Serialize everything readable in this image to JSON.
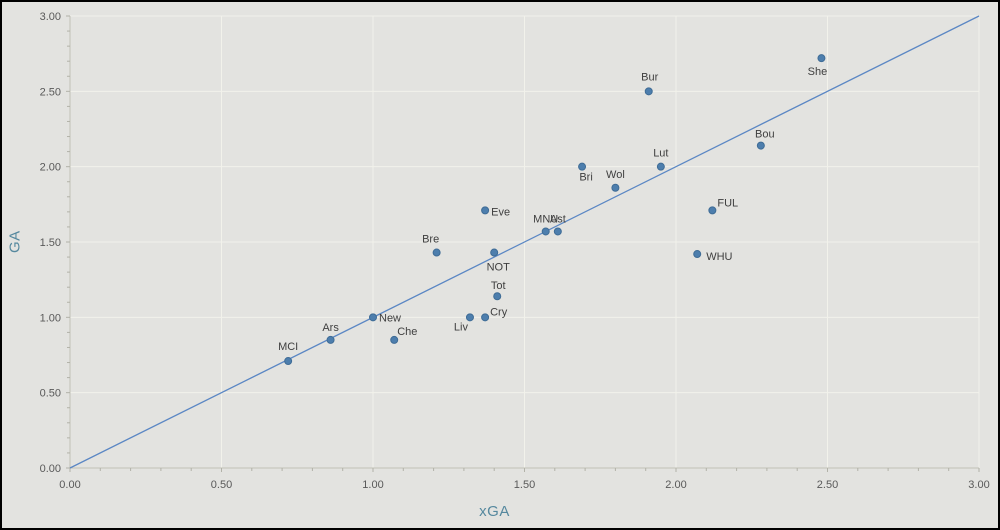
{
  "chart_theme": {
    "background": "#e3e3e0",
    "frame_border": "#000000",
    "gridline": "#f2f2eb",
    "axis_line": "#c0c0b6",
    "tick": "#b2b2a8",
    "tick_label_color": "#595959",
    "axis_title_color": "#55889e",
    "marker_fill": "#4d7ead",
    "marker_stroke": "#3f6c96",
    "reference_line_color": "#5b87c4",
    "point_label_color": "#3f3f3f"
  },
  "chart_data": {
    "type": "scatter",
    "title": "",
    "xlabel": "xGA",
    "ylabel": "GA",
    "xlim": [
      0,
      3
    ],
    "ylim": [
      0,
      3
    ],
    "x_major_step": 0.5,
    "x_minor_step": 0.1,
    "y_major_step": 0.5,
    "y_minor_step": 0.1,
    "x_tick_labels": [
      "0.00",
      "0.50",
      "1.00",
      "1.50",
      "2.00",
      "2.50",
      "3.00"
    ],
    "y_tick_labels": [
      "0.00",
      "0.50",
      "1.00",
      "1.50",
      "2.00",
      "2.50",
      "3.00"
    ],
    "grid": "major",
    "legend": "none",
    "reference_line": {
      "name": "identity",
      "from": [
        0,
        0
      ],
      "to": [
        3,
        3
      ]
    },
    "series": [
      {
        "name": "teams",
        "points": [
          {
            "label": "MCI",
            "x": 0.72,
            "y": 0.71,
            "dx": 0,
            "dy": -11,
            "anchor": "middle"
          },
          {
            "label": "Ars",
            "x": 0.86,
            "y": 0.85,
            "dx": 0,
            "dy": -9,
            "anchor": "middle"
          },
          {
            "label": "New",
            "x": 1.0,
            "y": 1.0,
            "dx": 6,
            "dy": 4,
            "anchor": "start"
          },
          {
            "label": "Che",
            "x": 1.07,
            "y": 0.85,
            "dx": 3,
            "dy": -5,
            "anchor": "start"
          },
          {
            "label": "Bre",
            "x": 1.21,
            "y": 1.43,
            "dx": -6,
            "dy": -10,
            "anchor": "middle"
          },
          {
            "label": "Liv",
            "x": 1.32,
            "y": 1.0,
            "dx": -2,
            "dy": 13,
            "anchor": "end"
          },
          {
            "label": "Eve",
            "x": 1.37,
            "y": 1.71,
            "dx": 6,
            "dy": 5,
            "anchor": "start"
          },
          {
            "label": "Cry",
            "x": 1.37,
            "y": 1.0,
            "dx": 5,
            "dy": -2,
            "anchor": "start"
          },
          {
            "label": "NOT",
            "x": 1.4,
            "y": 1.43,
            "dx": 4,
            "dy": 18,
            "anchor": "middle"
          },
          {
            "label": "Tot",
            "x": 1.41,
            "y": 1.14,
            "dx": 1,
            "dy": -7,
            "anchor": "middle"
          },
          {
            "label": "MNU",
            "x": 1.57,
            "y": 1.57,
            "dx": 0,
            "dy": -9,
            "anchor": "middle"
          },
          {
            "label": "Ast",
            "x": 1.61,
            "y": 1.57,
            "dx": 0,
            "dy": -9,
            "anchor": "middle"
          },
          {
            "label": "Bri",
            "x": 1.69,
            "y": 2.0,
            "dx": 4,
            "dy": 14,
            "anchor": "middle"
          },
          {
            "label": "Wol",
            "x": 1.8,
            "y": 1.86,
            "dx": 0,
            "dy": -10,
            "anchor": "middle"
          },
          {
            "label": "Bur",
            "x": 1.91,
            "y": 2.5,
            "dx": 1,
            "dy": -11,
            "anchor": "middle"
          },
          {
            "label": "Lut",
            "x": 1.95,
            "y": 2.0,
            "dx": 0,
            "dy": -10,
            "anchor": "middle"
          },
          {
            "label": "WHU",
            "x": 2.07,
            "y": 1.42,
            "dx": 9,
            "dy": 6,
            "anchor": "start"
          },
          {
            "label": "FUL",
            "x": 2.12,
            "y": 1.71,
            "dx": 5,
            "dy": -4,
            "anchor": "start"
          },
          {
            "label": "Bou",
            "x": 2.28,
            "y": 2.14,
            "dx": 4,
            "dy": -8,
            "anchor": "middle"
          },
          {
            "label": "She",
            "x": 2.48,
            "y": 2.72,
            "dx": -4,
            "dy": 17,
            "anchor": "middle"
          }
        ]
      }
    ]
  }
}
